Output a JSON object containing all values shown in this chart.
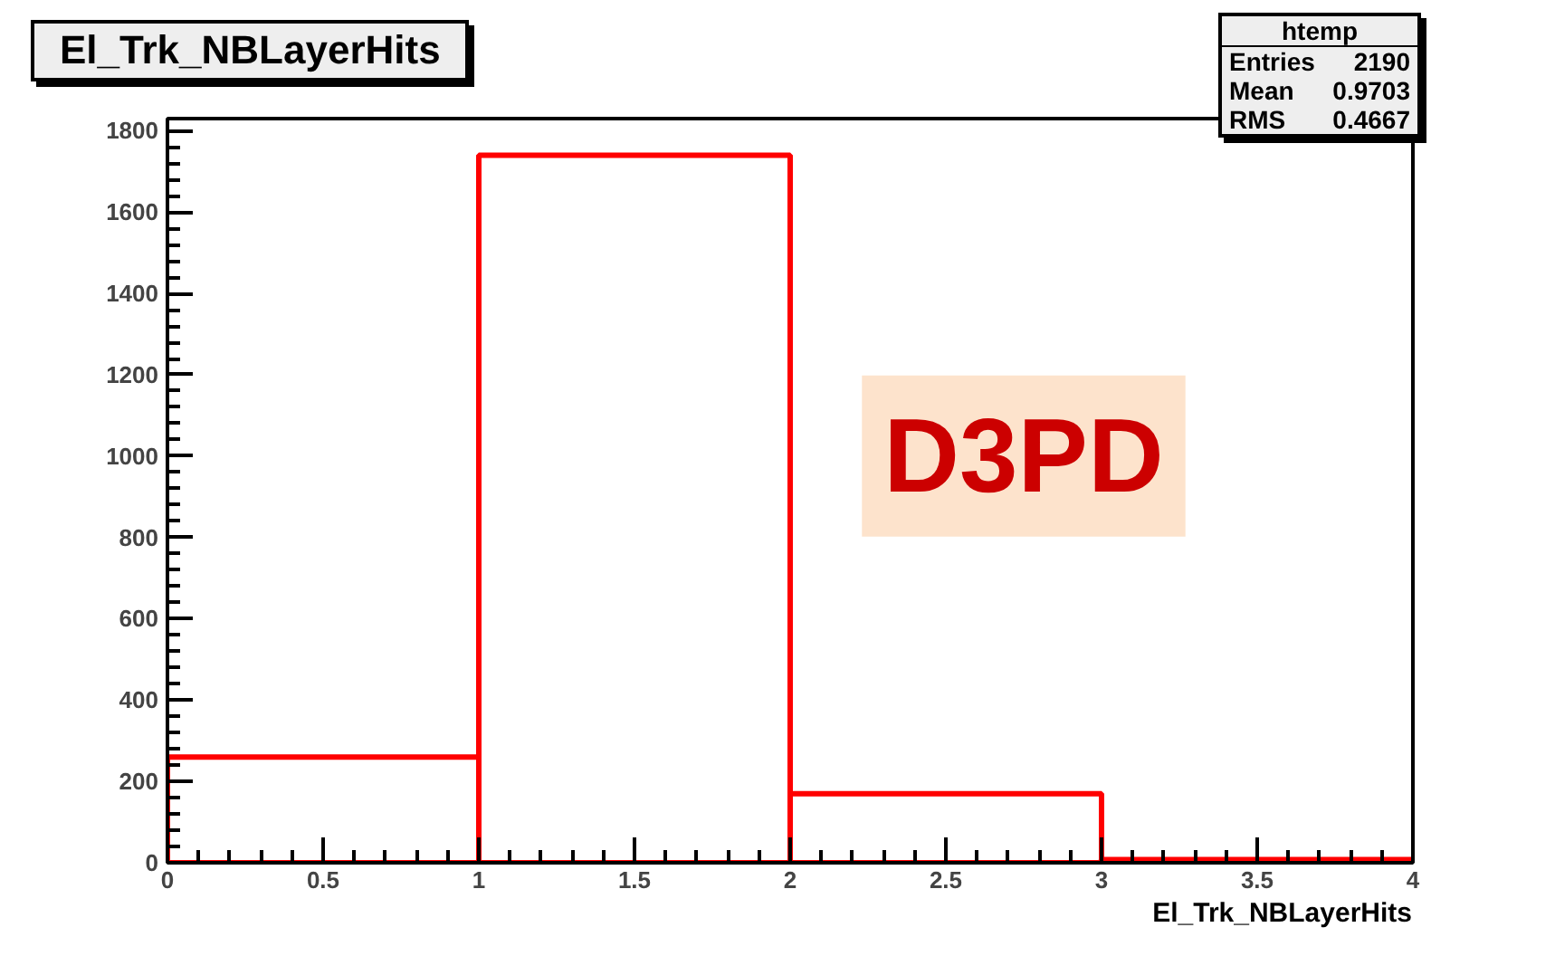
{
  "chart_data": {
    "type": "histogram",
    "title": "El_Trk_NBLayerHits",
    "xlabel": "El_Trk_NBLayerHits",
    "bins": [
      0,
      1,
      2,
      3,
      4
    ],
    "values": [
      260,
      1740,
      170,
      8
    ],
    "color": "#ff0000",
    "xlim": [
      0,
      4
    ],
    "xticks": [
      0,
      0.5,
      1,
      1.5,
      2,
      2.5,
      3,
      3.5,
      4
    ],
    "ylim": [
      0,
      1830
    ],
    "yticks": [
      0,
      200,
      400,
      600,
      800,
      1000,
      1200,
      1400,
      1600,
      1800
    ],
    "grid": false,
    "annotations": [
      "htemp",
      "Entries",
      "2190",
      "Mean",
      "0.9703",
      "RMS",
      "0.4667",
      "D3PD"
    ]
  }
}
